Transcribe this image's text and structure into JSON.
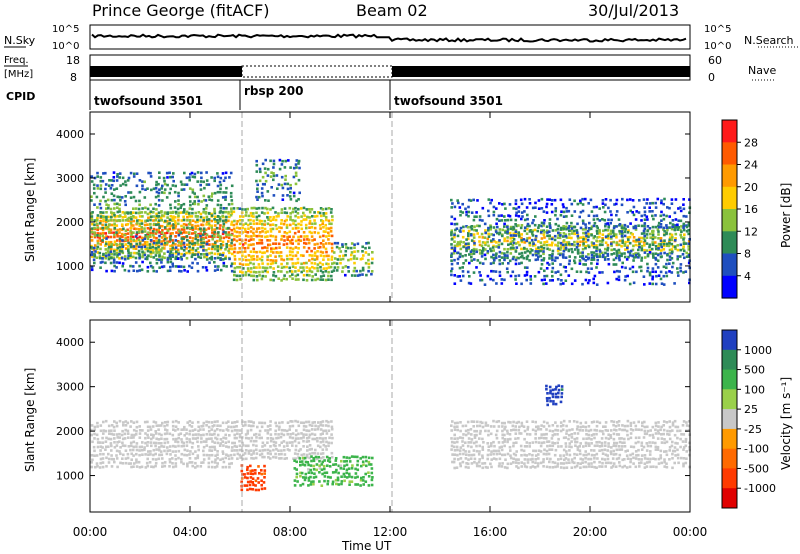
{
  "header": {
    "station": "Prince George (fitACF)",
    "beam": "Beam 02",
    "date": "30/Jul/2013"
  },
  "top_panels": {
    "nsky_label": "N.Sky",
    "nsearch_label": "N.Search",
    "nsky_ticks": [
      "10^5",
      "10^0"
    ],
    "nsearch_ticks": [
      "10^5",
      "10^0"
    ],
    "freq_label": "Freq.",
    "freq_unit": "[MHz]",
    "freq_ticks": [
      "18",
      "8"
    ],
    "nave_label": "Nave",
    "nave_ticks": [
      "60",
      "0"
    ],
    "cpid_label": "CPID",
    "cpid_segments": [
      {
        "label": "twofsound 3501",
        "start_hour": 0,
        "end_hour": 6
      },
      {
        "label": "rbsp 200",
        "start_hour": 6,
        "end_hour": 12
      },
      {
        "label": "twofsound 3501",
        "start_hour": 12,
        "end_hour": 24
      }
    ]
  },
  "chart_data": [
    {
      "type": "heatmap",
      "panel": "power",
      "ylabel": "Slant Range [km]",
      "xlabel": "Time UT",
      "x_ticks": [
        "00:00",
        "04:00",
        "08:00",
        "12:00",
        "16:00",
        "20:00",
        "00:00"
      ],
      "xlim": [
        0,
        24
      ],
      "ylim": [
        180,
        4500
      ],
      "y_ticks": [
        1000,
        2000,
        3000,
        4000
      ],
      "colorbar": {
        "label": "Power [dB]",
        "ticks": [
          "28",
          "24",
          "20",
          "16",
          "12",
          "8",
          "4"
        ],
        "colors": [
          "#ff1a1a",
          "#ff5a00",
          "#ff9a00",
          "#ffcc00",
          "#8ac23c",
          "#2e8b57",
          "#1f4fbf",
          "#0000ff"
        ]
      },
      "regions": [
        {
          "t0": 0.0,
          "t1": 5.7,
          "r0": 1200,
          "r1": 2300,
          "level": 0.9
        },
        {
          "t0": 0.0,
          "t1": 5.7,
          "r0": 900,
          "r1": 3200,
          "level": 0.4
        },
        {
          "t0": 5.7,
          "t1": 9.7,
          "r0": 700,
          "r1": 2400,
          "level": 0.8
        },
        {
          "t0": 9.7,
          "t1": 11.3,
          "r0": 800,
          "r1": 1600,
          "level": 0.5
        },
        {
          "t0": 6.6,
          "t1": 8.4,
          "r0": 2500,
          "r1": 3500,
          "level": 0.3
        },
        {
          "t0": 14.4,
          "t1": 24.0,
          "r0": 1200,
          "r1": 2000,
          "level": 0.6
        },
        {
          "t0": 14.4,
          "t1": 24.0,
          "r0": 600,
          "r1": 2600,
          "level": 0.25
        }
      ]
    },
    {
      "type": "heatmap",
      "panel": "velocity",
      "ylabel": "Slant Range [km]",
      "xlabel": "Time UT",
      "x_ticks": [
        "00:00",
        "04:00",
        "08:00",
        "12:00",
        "16:00",
        "20:00",
        "00:00"
      ],
      "xlim": [
        0,
        24
      ],
      "ylim": [
        180,
        4500
      ],
      "y_ticks": [
        1000,
        2000,
        3000,
        4000
      ],
      "colorbar": {
        "label": "Velocity [m s⁻¹]",
        "ticks": [
          "1000",
          "500",
          "100",
          "25",
          "-25",
          "-100",
          "-500",
          "-1000"
        ],
        "colors": [
          "#2040c0",
          "#2e8b57",
          "#3cb44b",
          "#9ad04a",
          "#c8c8c8",
          "#ff9a00",
          "#ff6a00",
          "#ff3a00",
          "#e00000"
        ]
      },
      "regions": [
        {
          "t0": 0.0,
          "t1": 5.7,
          "r0": 1200,
          "r1": 2300,
          "value": 0
        },
        {
          "t0": 5.7,
          "t1": 9.7,
          "r0": 1400,
          "r1": 2300,
          "value": 0
        },
        {
          "t0": 6.0,
          "t1": 7.0,
          "r0": 700,
          "r1": 1300,
          "value": -400
        },
        {
          "t0": 8.1,
          "t1": 11.3,
          "r0": 800,
          "r1": 1500,
          "value": 150
        },
        {
          "t0": 14.4,
          "t1": 24.0,
          "r0": 1200,
          "r1": 2300,
          "value": 0
        },
        {
          "t0": 18.2,
          "t1": 18.9,
          "r0": 2600,
          "r1": 3100,
          "value": 800
        }
      ]
    }
  ]
}
